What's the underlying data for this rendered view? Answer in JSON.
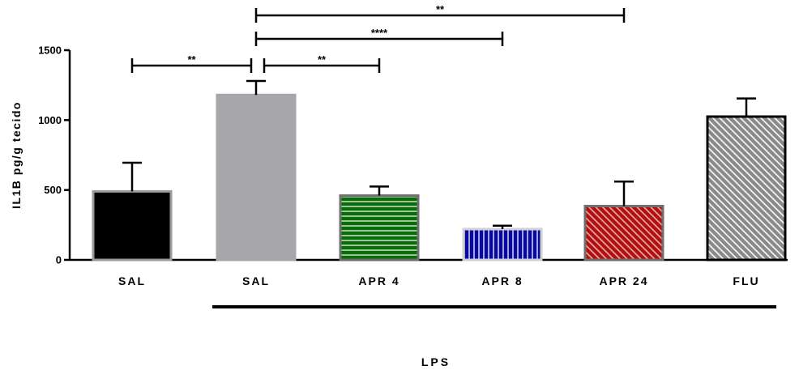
{
  "chart_data": {
    "type": "bar",
    "ylabel": "IL1B pg/g tecido",
    "ylim": [
      0,
      1500
    ],
    "yticks": [
      0,
      500,
      1000,
      1500
    ],
    "categories": [
      "SAL",
      "SAL",
      "APR 4",
      "APR 8",
      "APR 24",
      "FLU"
    ],
    "values": [
      490,
      1180,
      460,
      220,
      385,
      1025
    ],
    "errors": [
      205,
      100,
      65,
      25,
      175,
      130
    ],
    "bar_styles": [
      {
        "fill": "#000000",
        "stroke": "#9a9a9a",
        "pattern": "solid"
      },
      {
        "fill": "#a6a6ab",
        "stroke": "#a6a6ab",
        "pattern": "solid"
      },
      {
        "fill": "#0b6b0b",
        "stroke": "#6f6f6f",
        "pattern": "horizontal-lines"
      },
      {
        "fill": "#0a0a9a",
        "stroke": "#d0d0d0",
        "pattern": "vertical-lines"
      },
      {
        "fill": "#b01010",
        "stroke": "#6f6f6f",
        "pattern": "diagonal-lines"
      },
      {
        "fill": "#8a8a8a",
        "stroke": "#000000",
        "pattern": "diagonal-lines"
      }
    ],
    "group_label": {
      "text": "LPS",
      "from": 1,
      "to": 5
    },
    "significance": [
      {
        "from": 0,
        "to": 1,
        "label": "**"
      },
      {
        "from": 1,
        "to": 2,
        "label": "**"
      },
      {
        "from": 1,
        "to": 3,
        "label": "****"
      },
      {
        "from": 1,
        "to": 4,
        "label": "**"
      }
    ],
    "grid": false,
    "legend": "none"
  }
}
